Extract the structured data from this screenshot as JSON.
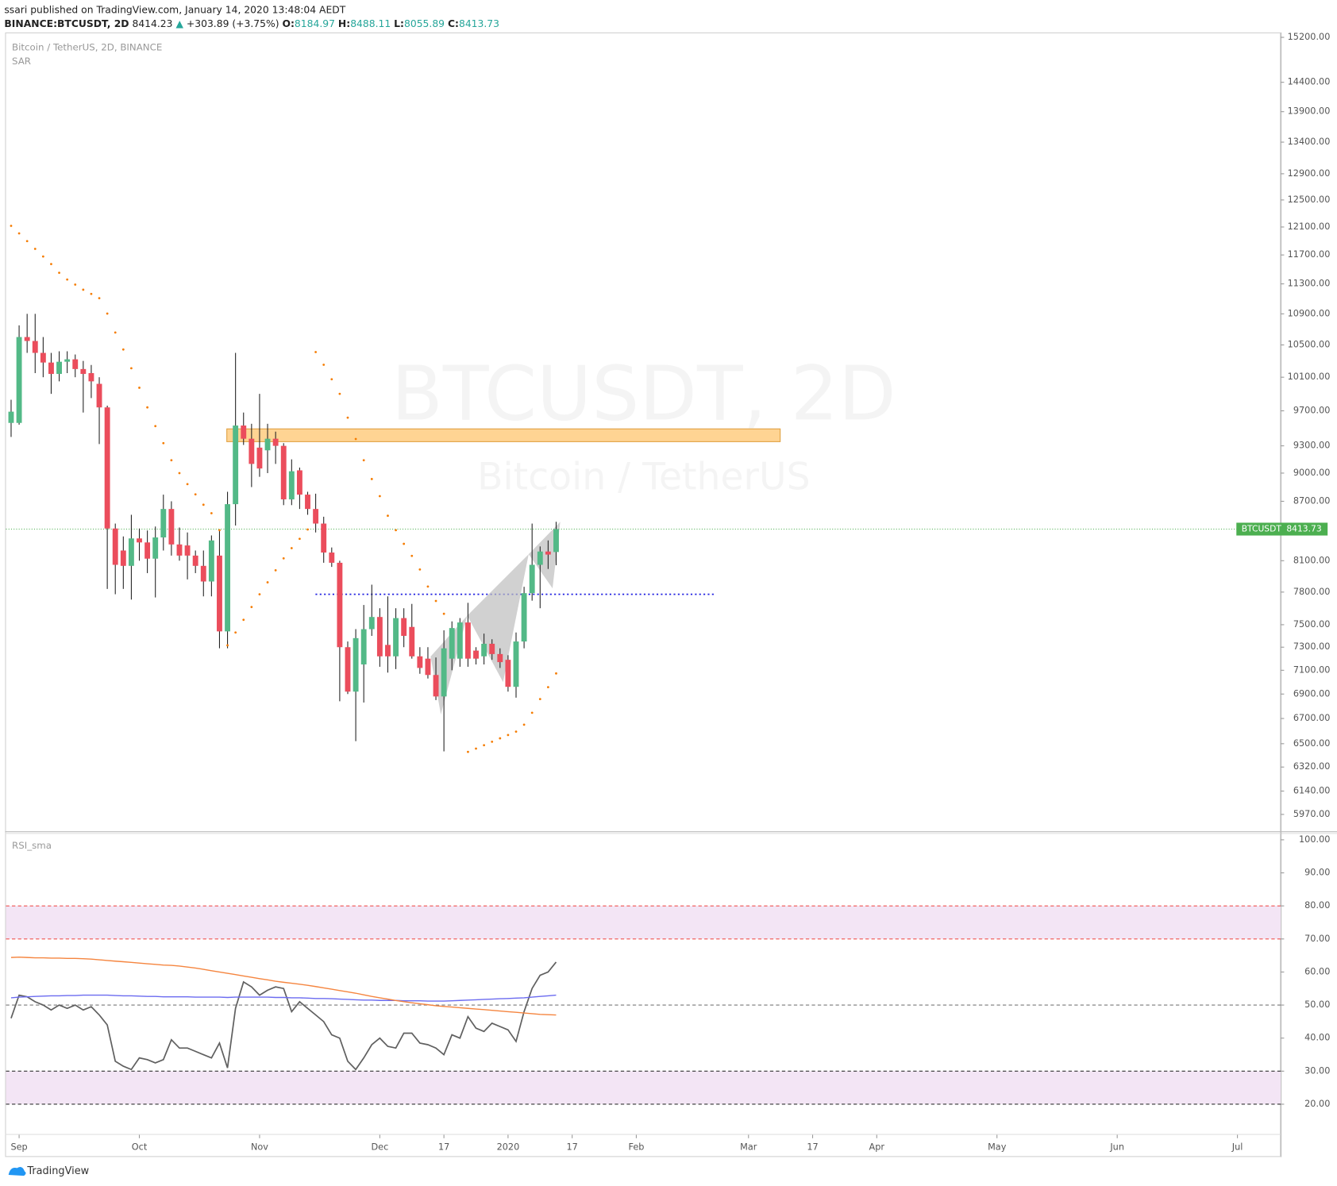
{
  "header": {
    "publisher": "ssari published on TradingView.com, January 14, 2020 13:48:04 AEDT",
    "symbol": "BINANCE:BTCUSDT, 2D",
    "last": "8414.23",
    "arrow": "▲",
    "change": "+303.89 (+3.75%)",
    "o_label": "O:",
    "o": "8184.97",
    "h_label": "H:",
    "h": "8488.11",
    "l_label": "L:",
    "l": "8055.89",
    "c_label": "C:",
    "c": "8413.73"
  },
  "footer": "TradingView",
  "chart_data": [
    {
      "type": "candlestick",
      "title": "Bitcoin / TetherUS, 2D, BINANCE",
      "indicator": "SAR",
      "watermark": [
        "BTCUSDT, 2D",
        "Bitcoin / TetherUS"
      ],
      "log_scale": true,
      "up_color": "#53b987",
      "down_color": "#eb4d5c",
      "sar_color": "#f57c00",
      "open": [
        9560,
        9560,
        10600,
        10550,
        10400,
        10280,
        10140,
        10290,
        10320,
        10200,
        10150,
        10020,
        9740,
        8420,
        8200,
        8050,
        8320,
        8280,
        8120,
        8330,
        8620,
        8260,
        8250,
        8150,
        8050,
        7900,
        8150,
        7440,
        8670,
        9530,
        9380,
        9280,
        9250,
        9380,
        9300,
        8720,
        9030,
        8770,
        8620,
        8470,
        8180,
        8080,
        7300,
        6920,
        7150,
        7460,
        7570,
        7320,
        7220,
        7560,
        7480,
        7220,
        7200,
        7060,
        6880,
        7200,
        7200,
        7520,
        7270,
        7220,
        7330,
        7240,
        7190,
        6960,
        7350,
        7790,
        8060,
        8190,
        8184.97
      ],
      "high": [
        9830,
        10750,
        10900,
        10900,
        10600,
        10400,
        10420,
        10420,
        10380,
        10300,
        10250,
        10100,
        9760,
        8470,
        8340,
        8560,
        8420,
        8400,
        8440,
        8770,
        8700,
        8430,
        8380,
        8200,
        8200,
        8350,
        8400,
        8800,
        10400,
        9680,
        9550,
        9900,
        9550,
        9460,
        9330,
        9150,
        9060,
        8800,
        8780,
        8540,
        8230,
        8100,
        7350,
        7460,
        7680,
        7870,
        7650,
        7760,
        7650,
        7650,
        7690,
        7300,
        7300,
        7210,
        7450,
        7530,
        7560,
        7700,
        7300,
        7420,
        7370,
        7290,
        7230,
        7430,
        7850,
        8470,
        8240,
        8300,
        8488.11
      ],
      "low": [
        9400,
        9540,
        10400,
        10150,
        10100,
        9900,
        10050,
        10150,
        10100,
        9680,
        9850,
        9320,
        7830,
        7780,
        7830,
        7730,
        8100,
        7980,
        7750,
        8200,
        8150,
        8100,
        7920,
        7980,
        7760,
        7760,
        7290,
        7290,
        8450,
        9310,
        8850,
        8960,
        9000,
        9100,
        8660,
        8660,
        8620,
        8560,
        8380,
        8080,
        8040,
        6840,
        6900,
        6520,
        6830,
        7400,
        7130,
        7080,
        7110,
        7300,
        7200,
        7070,
        7030,
        6850,
        6440,
        7100,
        7130,
        7130,
        7150,
        7150,
        7190,
        7120,
        6920,
        6870,
        7290,
        7720,
        7650,
        8020,
        8055.89
      ],
      "close": [
        9690,
        10600,
        10550,
        10400,
        10280,
        10140,
        10290,
        10320,
        10200,
        10140,
        10050,
        9740,
        8420,
        8060,
        8050,
        8320,
        8280,
        8120,
        8330,
        8620,
        8260,
        8150,
        8150,
        8050,
        7900,
        8300,
        7440,
        8670,
        9530,
        9380,
        9100,
        9050,
        9380,
        9300,
        8720,
        9020,
        8770,
        8620,
        8470,
        8180,
        8080,
        7300,
        6920,
        7380,
        7460,
        7570,
        7220,
        7220,
        7560,
        7400,
        7220,
        7120,
        7060,
        6880,
        7290,
        7470,
        7520,
        7200,
        7200,
        7330,
        7240,
        7170,
        6960,
        7350,
        7790,
        8060,
        8190,
        8160,
        8413.73
      ],
      "sar": [
        12117,
        12007,
        11896,
        11786,
        11678,
        11572,
        11452,
        11359,
        11290,
        11221,
        11164,
        11107,
        10903,
        10658,
        10442,
        10210,
        9973,
        9740,
        9523,
        9330,
        9140,
        9000,
        8881,
        8773,
        8664,
        8576,
        8403,
        7316,
        7430,
        7544,
        7661,
        7779,
        7892,
        8007,
        8123,
        8223,
        8316,
        8410,
        10410,
        10252,
        10075,
        9900,
        9620,
        9377,
        9140,
        8936,
        8754,
        8550,
        8403,
        8266,
        8147,
        8015,
        7852,
        7717,
        7599,
        null,
        null,
        6436,
        6462,
        6488,
        6515,
        6542,
        6568,
        6595,
        6650,
        6746,
        6858,
        6957,
        7073
      ],
      "price_line": {
        "name": "BTCUSDT",
        "value": 8413.73,
        "color": "#4caf50"
      },
      "xlim": [
        -0.64,
        158.4
      ],
      "xticks": [
        {
          "value": 1,
          "label": "Sep"
        },
        {
          "value": 16,
          "label": "Oct"
        },
        {
          "value": 31,
          "label": "Nov"
        },
        {
          "value": 46,
          "label": "Dec"
        },
        {
          "value": 54,
          "label": "17"
        },
        {
          "value": 62,
          "label": "2020"
        },
        {
          "value": 70,
          "label": "17"
        },
        {
          "value": 78,
          "label": "Feb"
        },
        {
          "value": 92,
          "label": "Mar"
        },
        {
          "value": 100,
          "label": "17"
        },
        {
          "value": 108,
          "label": "Apr"
        },
        {
          "value": 123,
          "label": "May"
        },
        {
          "value": 138,
          "label": "Jun"
        },
        {
          "value": 153,
          "label": "Jul"
        }
      ],
      "ylim": [
        5850,
        15290
      ],
      "yticks": [
        {
          "value": 15200,
          "label": "15200.00"
        },
        {
          "value": 14400,
          "label": "14400.00"
        },
        {
          "value": 13900,
          "label": "13900.00"
        },
        {
          "value": 13400,
          "label": "13400.00"
        },
        {
          "value": 12900,
          "label": "12900.00"
        },
        {
          "value": 12500,
          "label": "12500.00"
        },
        {
          "value": 12100,
          "label": "12100.00"
        },
        {
          "value": 11700,
          "label": "11700.00"
        },
        {
          "value": 11300,
          "label": "11300.00"
        },
        {
          "value": 10900,
          "label": "10900.00"
        },
        {
          "value": 10500,
          "label": "10500.00"
        },
        {
          "value": 10100,
          "label": "10100.00"
        },
        {
          "value": 9700,
          "label": "9700.00"
        },
        {
          "value": 9300,
          "label": "9300.00"
        },
        {
          "value": 9000,
          "label": "9000.00"
        },
        {
          "value": 8700,
          "label": "8700.00"
        },
        {
          "value": 8100,
          "label": "8100.00"
        },
        {
          "value": 7800,
          "label": "7800.00"
        },
        {
          "value": 7500,
          "label": "7500.00"
        },
        {
          "value": 7300,
          "label": "7300.00"
        },
        {
          "value": 7100,
          "label": "7100.00"
        },
        {
          "value": 6900,
          "label": "6900.00"
        },
        {
          "value": 6700,
          "label": "6700.00"
        },
        {
          "value": 6500,
          "label": "6500.00"
        },
        {
          "value": 6320,
          "label": "6320.00"
        },
        {
          "value": 6140,
          "label": "6140.00"
        },
        {
          "value": 5970,
          "label": "5970.00"
        }
      ]
    },
    {
      "type": "line",
      "title": "RSI_sma",
      "series": [
        {
          "color": "#606060",
          "values": [
            46,
            53,
            52.5,
            51,
            50,
            48.5,
            50,
            49,
            50,
            48.5,
            49.5,
            47,
            44,
            33,
            31.5,
            30.5,
            34,
            33.5,
            32.5,
            33.5,
            39.5,
            37,
            37,
            36,
            35,
            34,
            38.5,
            31,
            49,
            57,
            55.5,
            53,
            54.5,
            55.5,
            55,
            48,
            51,
            49,
            47,
            45,
            41,
            40,
            33,
            30.5,
            34,
            38,
            40,
            37.5,
            37,
            41.5,
            41.5,
            38.5,
            38,
            37,
            35,
            41,
            40,
            46.5,
            43,
            42,
            44.5,
            43.5,
            42.5,
            39,
            48,
            55,
            59,
            60,
            63
          ]
        },
        {
          "color": "#6b6bf0",
          "values": [
            52.2,
            52.4,
            52.5,
            52.6,
            52.7,
            52.8,
            52.8,
            52.9,
            52.9,
            53,
            53,
            53,
            53,
            52.9,
            52.8,
            52.8,
            52.7,
            52.6,
            52.6,
            52.5,
            52.5,
            52.5,
            52.5,
            52.4,
            52.4,
            52.4,
            52.4,
            52.3,
            52.4,
            52.4,
            52.4,
            52.4,
            52.4,
            52.3,
            52.3,
            52.2,
            52.2,
            52.1,
            52,
            52,
            51.9,
            51.8,
            51.7,
            51.6,
            51.5,
            51.5,
            51.4,
            51.4,
            51.4,
            51.3,
            51.3,
            51.3,
            51.2,
            51.2,
            51.2,
            51.3,
            51.4,
            51.5,
            51.6,
            51.7,
            51.8,
            51.9,
            52,
            52.1,
            52.2,
            52.4,
            52.6,
            52.8,
            53
          ]
        },
        {
          "color": "#f5853f",
          "values": [
            64.4,
            64.5,
            64.4,
            64.3,
            64.3,
            64.2,
            64.2,
            64.1,
            64.1,
            64,
            63.9,
            63.7,
            63.5,
            63.3,
            63.1,
            62.9,
            62.7,
            62.5,
            62.3,
            62.1,
            62,
            61.8,
            61.5,
            61.2,
            60.8,
            60.4,
            60,
            59.6,
            59.2,
            58.8,
            58.4,
            58,
            57.6,
            57.2,
            56.9,
            56.6,
            56.3,
            56,
            55.6,
            55.2,
            54.8,
            54.4,
            54,
            53.6,
            53.1,
            52.6,
            52.2,
            51.8,
            51.4,
            51,
            50.7,
            50.4,
            50.1,
            49.8,
            49.6,
            49.4,
            49.2,
            49,
            48.8,
            48.6,
            48.4,
            48.2,
            48,
            47.8,
            47.6,
            47.4,
            47.2,
            47.1,
            47
          ]
        }
      ],
      "bands": [
        [
          70,
          80
        ],
        [
          20,
          30
        ]
      ],
      "band_color": "#f3e5f5",
      "levels": [
        {
          "value": 80,
          "color": "#ef5350"
        },
        {
          "value": 70,
          "color": "#ef5350"
        },
        {
          "value": 50,
          "color": "#787878"
        },
        {
          "value": 30,
          "color": "#333333"
        },
        {
          "value": 20,
          "color": "#333333"
        }
      ],
      "xlim": [
        -0.64,
        158.4
      ],
      "ylim": [
        11,
        101.8
      ],
      "yticks": [
        {
          "value": 100,
          "label": "100.00"
        },
        {
          "value": 90,
          "label": "90.00"
        },
        {
          "value": 80,
          "label": "80.00"
        },
        {
          "value": 70,
          "label": "70.00"
        },
        {
          "value": 60,
          "label": "60.00"
        },
        {
          "value": 50,
          "label": "50.00"
        },
        {
          "value": 40,
          "label": "40.00"
        },
        {
          "value": 30,
          "label": "30.00"
        },
        {
          "value": 20,
          "label": "20.00"
        }
      ]
    }
  ]
}
